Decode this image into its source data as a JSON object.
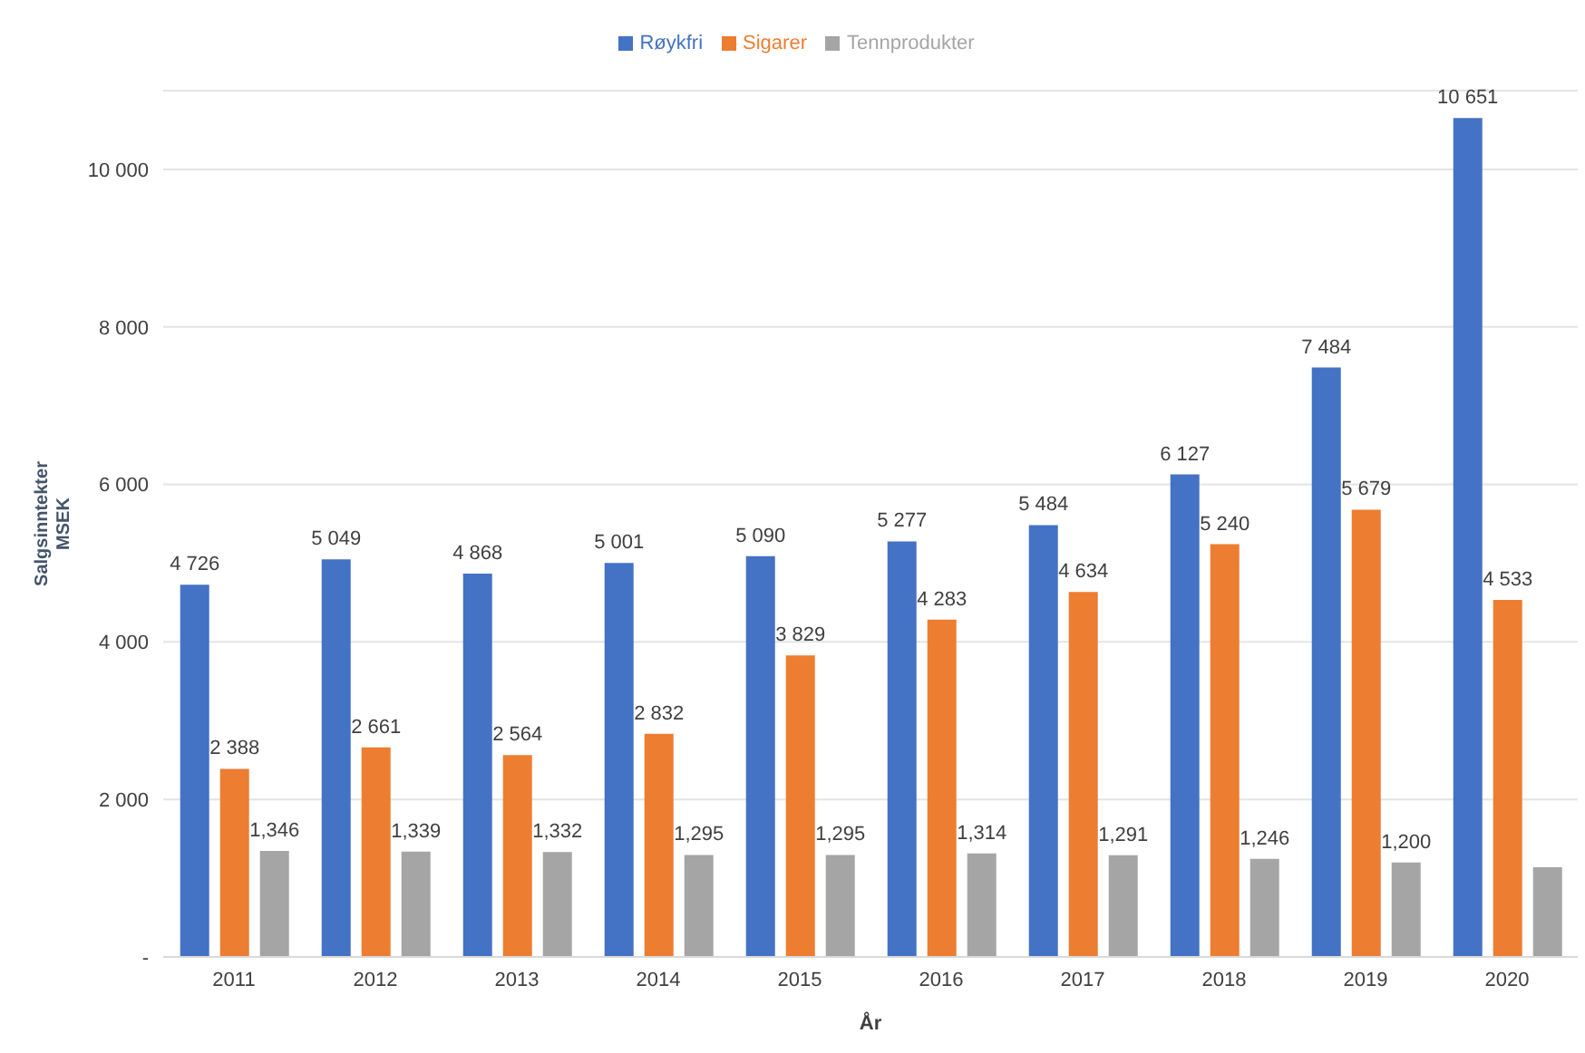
{
  "chart_data": {
    "type": "bar",
    "xlabel": "År",
    "ylabel": "Salgsinntekter\nMSEK",
    "categories": [
      "2011",
      "2012",
      "2013",
      "2014",
      "2015",
      "2016",
      "2017",
      "2018",
      "2019",
      "2020"
    ],
    "series": [
      {
        "name": "Røykfri",
        "color": "#4472c4",
        "values": [
          4726,
          5049,
          4868,
          5001,
          5090,
          5277,
          5484,
          6127,
          7484,
          10651
        ],
        "value_labels": [
          "4 726",
          "5 049",
          "4 868",
          "5 001",
          "5 090",
          "5 277",
          "5 484",
          "6 127",
          "7 484",
          "10 651"
        ]
      },
      {
        "name": "Sigarer",
        "color": "#ed7d31",
        "values": [
          2388,
          2661,
          2564,
          2832,
          3829,
          4283,
          4634,
          5240,
          5679,
          4533
        ],
        "value_labels": [
          "2 388",
          "2 661",
          "2 564",
          "2 832",
          "3 829",
          "4 283",
          "4 634",
          "5 240",
          "5 679",
          "4 533"
        ]
      },
      {
        "name": "Tennprodukter",
        "color": "#a5a5a5",
        "values": [
          1346,
          1339,
          1332,
          1295,
          1295,
          1314,
          1291,
          1246,
          1200,
          1140
        ],
        "value_labels": [
          "1,346",
          "1,339",
          "1,332",
          "1,295",
          "1,295",
          "1,314",
          "1,291",
          "1,246",
          "1,200",
          null
        ]
      }
    ],
    "ylim": [
      0,
      11000
    ],
    "yticks": [
      {
        "value": 0,
        "label": "-"
      },
      {
        "value": 2000,
        "label": "2 000"
      },
      {
        "value": 4000,
        "label": "4 000"
      },
      {
        "value": 6000,
        "label": "6 000"
      },
      {
        "value": 8000,
        "label": "8 000"
      },
      {
        "value": 10000,
        "label": "10 000"
      }
    ],
    "grid": "y",
    "legend": "top"
  }
}
